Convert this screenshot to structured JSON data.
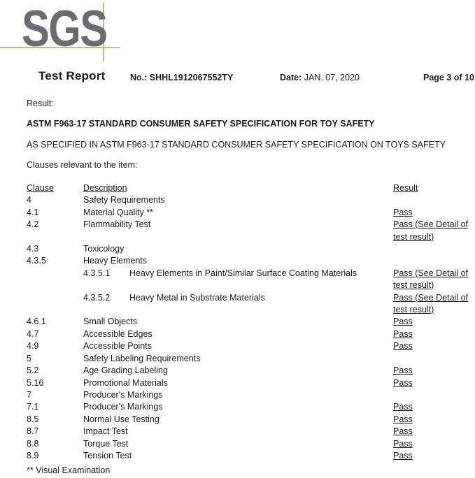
{
  "logo": {
    "text": "SGS"
  },
  "header": {
    "title": "Test Report",
    "no_label": "No.:",
    "no_value": "SHHL1912067552TY",
    "date_label": "Date:",
    "date_value": "JAN. 07, 2020",
    "page": "Page 3 of 10"
  },
  "result_label": "Result:",
  "spec_title": "ASTM F963-17 STANDARD CONSUMER SAFETY SPECIFICATION FOR TOY SAFETY",
  "spec_subtitle": "AS SPECIFIED IN ASTM F963-17 STANDARD CONSUMER SAFETY SPECIFICATION ON TOYS SAFETY",
  "clauses_intro": "Clauses relevant to the item:",
  "table": {
    "headers": {
      "clause": "Clause",
      "description": "Description",
      "result": "Result"
    },
    "rows": [
      {
        "clause": "4",
        "sub_clause": "",
        "description": "Safety Requirements",
        "result": ""
      },
      {
        "clause": "4.1",
        "sub_clause": "",
        "description": "Material Quality **",
        "result": "Pass"
      },
      {
        "clause": "4.2",
        "sub_clause": "",
        "description": "Flammability Test",
        "result": "Pass (See Detail of test result)"
      },
      {
        "clause": "4.3",
        "sub_clause": "",
        "description": "Toxicology",
        "result": ""
      },
      {
        "clause": "4.3.5",
        "sub_clause": "",
        "description": "Heavy Elements",
        "result": ""
      },
      {
        "clause": "",
        "sub_clause": "4.3.5.1",
        "description": "Heavy Elements in Paint/Similar Surface Coating Materials",
        "result": "Pass (See Detail of test result)"
      },
      {
        "clause": "",
        "sub_clause": "4.3.5.2",
        "description": "Heavy Metal in Substrate Materials",
        "result": "Pass (See Detail of test result)"
      },
      {
        "clause": "4.6.1",
        "sub_clause": "",
        "description": "Small Objects",
        "result": "Pass"
      },
      {
        "clause": "4.7",
        "sub_clause": "",
        "description": "Accessible Edges",
        "result": "Pass"
      },
      {
        "clause": "4.9",
        "sub_clause": "",
        "description": "Accessible Points",
        "result": "Pass"
      },
      {
        "clause": "5",
        "sub_clause": "",
        "description": "Safety Labeling Requirements",
        "result": ""
      },
      {
        "clause": "5.2",
        "sub_clause": "",
        "description": "Age Grading Labeling",
        "result": "Pass"
      },
      {
        "clause": "5.16",
        "sub_clause": "",
        "description": "Promotional Materials",
        "result": "Pass"
      },
      {
        "clause": "7",
        "sub_clause": "",
        "description": "Producer's Markings",
        "result": ""
      },
      {
        "clause": "7.1",
        "sub_clause": "",
        "description": "Producer's Markings",
        "result": "Pass"
      },
      {
        "clause": "8.5",
        "sub_clause": "",
        "description": "Normal Use Testing",
        "result": "Pass"
      },
      {
        "clause": "8.7",
        "sub_clause": "",
        "description": "Impact Test",
        "result": "Pass"
      },
      {
        "clause": "8.8",
        "sub_clause": "",
        "description": "Torque Test",
        "result": "Pass"
      },
      {
        "clause": "8.9",
        "sub_clause": "",
        "description": "Tension Test",
        "result": "Pass"
      }
    ]
  },
  "footnote": "** Visual Examination",
  "colors": {
    "logo_gray": "#6b6b72",
    "crosshair_tan": "#d7b278",
    "text": "#1c1c1c"
  }
}
